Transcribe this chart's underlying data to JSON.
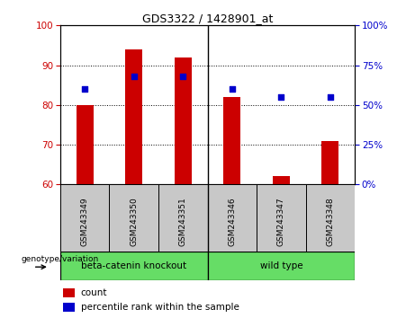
{
  "title": "GDS3322 / 1428901_at",
  "samples": [
    "GSM243349",
    "GSM243350",
    "GSM243351",
    "GSM243346",
    "GSM243347",
    "GSM243348"
  ],
  "group_labels": [
    "beta-catenin knockout",
    "wild type"
  ],
  "bar_values": [
    80,
    94,
    92,
    82,
    62,
    71
  ],
  "dot_values_pct": [
    60,
    68,
    68,
    60,
    55,
    55
  ],
  "ylim_left": [
    60,
    100
  ],
  "ylim_right": [
    0,
    100
  ],
  "yticks_left": [
    60,
    70,
    80,
    90,
    100
  ],
  "yticks_right": [
    0,
    25,
    50,
    75,
    100
  ],
  "bar_color": "#CC0000",
  "dot_color": "#0000CC",
  "bar_bottom": 60,
  "bar_width": 0.35,
  "legend_count_label": "count",
  "legend_percentile_label": "percentile rank within the sample",
  "genotype_label": "genotype/variation",
  "group_split": 3,
  "n_samples": 6,
  "bg_gray": "#C8C8C8",
  "bg_green": "#66DD66"
}
